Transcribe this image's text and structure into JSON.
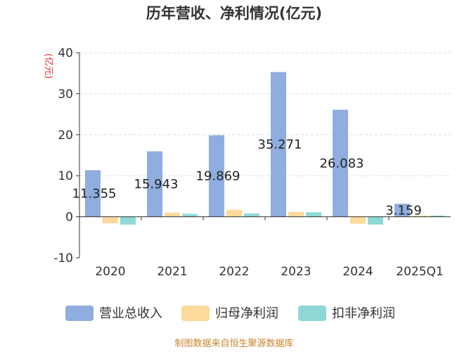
{
  "chart_data": {
    "type": "bar",
    "title": "历年营收、净利情况(亿元)",
    "ylabel": "(亿元)",
    "xlabel": "",
    "categories": [
      "2020",
      "2021",
      "2022",
      "2023",
      "2024",
      "2025Q1"
    ],
    "ylim": [
      -10,
      40
    ],
    "yticks": [
      -10,
      0,
      10,
      20,
      30,
      40
    ],
    "grid": true,
    "legend_position": "bottom",
    "series": [
      {
        "name": "营业总收入",
        "color": "#8fadde",
        "values": [
          11.355,
          15.943,
          19.869,
          35.271,
          26.083,
          3.159
        ],
        "labels": [
          "11.355",
          "15.943",
          "19.869",
          "35.271",
          "26.083",
          "3.159"
        ]
      },
      {
        "name": "归母净利润",
        "color": "#fdd99b",
        "values": [
          -1.6,
          1.0,
          1.7,
          1.2,
          -1.7,
          0.3
        ]
      },
      {
        "name": "扣非净利润",
        "color": "#8fd8d8",
        "values": [
          -1.9,
          0.7,
          0.8,
          1.1,
          -1.9,
          0.3
        ]
      }
    ]
  },
  "source": "制图数据来自恒生聚源数据库",
  "colors": {
    "title": "#333333",
    "axis_label": "#e5302d",
    "axis": "#333333",
    "grid": "#dddddd",
    "tick_text": "#333333",
    "source": "#c8832b"
  }
}
